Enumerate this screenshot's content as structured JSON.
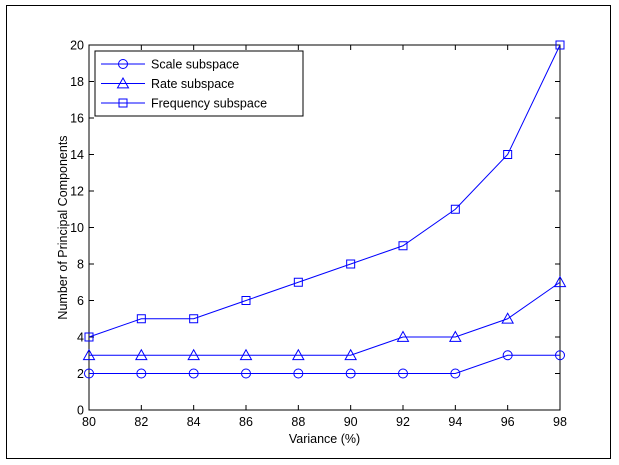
{
  "chart_data": {
    "type": "line",
    "title": "",
    "xlabel": "Variance (%)",
    "ylabel": "Number of Principal Components",
    "x": [
      80,
      82,
      84,
      86,
      88,
      90,
      92,
      94,
      96,
      98
    ],
    "xlim": [
      80,
      98
    ],
    "ylim": [
      0,
      20
    ],
    "xticks": [
      "80",
      "82",
      "84",
      "86",
      "88",
      "90",
      "92",
      "94",
      "96",
      "98"
    ],
    "yticks": [
      "0",
      "2",
      "4",
      "6",
      "8",
      "10",
      "12",
      "14",
      "16",
      "18",
      "20"
    ],
    "grid": false,
    "legend_position": "top-left",
    "line_color": "#0000ff",
    "series": [
      {
        "name": "Scale subspace",
        "marker": "circle",
        "values": [
          2,
          2,
          2,
          2,
          2,
          2,
          2,
          2,
          3,
          3
        ]
      },
      {
        "name": "Rate subspace",
        "marker": "triangle",
        "values": [
          3,
          3,
          3,
          3,
          3,
          3,
          4,
          4,
          5,
          7
        ]
      },
      {
        "name": "Frequency subspace",
        "marker": "square",
        "values": [
          4,
          5,
          5,
          6,
          7,
          8,
          9,
          11,
          14,
          20
        ]
      }
    ]
  }
}
